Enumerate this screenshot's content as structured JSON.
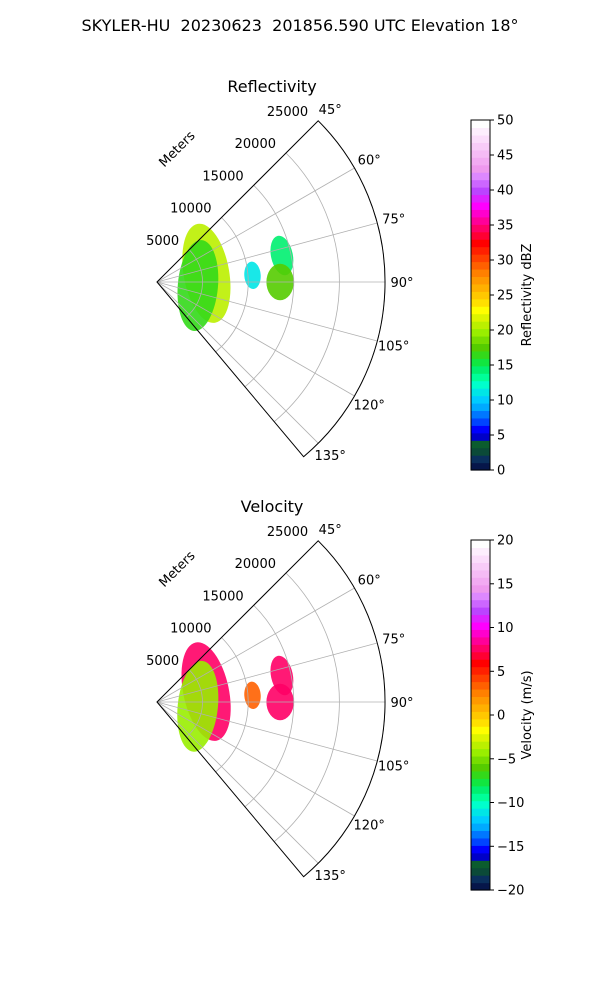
{
  "figure": {
    "title": "SKYLER-HU  20230623  201856.590 UTC Elevation 18°"
  },
  "chart_data": [
    {
      "type": "heatmap",
      "title": "Reflectivity",
      "radial_label": "Meters",
      "radial_ticks": [
        5000,
        10000,
        15000,
        20000,
        25000
      ],
      "radial_range": [
        0,
        25000
      ],
      "angle_ticks": [
        "45°",
        "60°",
        "75°",
        "90°",
        "105°",
        "120°",
        "135°"
      ],
      "angle_range_deg": [
        45,
        140
      ],
      "grid": true,
      "colorbar": {
        "label": "Reflectivity dBZ",
        "range": [
          0,
          50
        ],
        "ticks": [
          "0",
          "5",
          "10",
          "15",
          "20",
          "25",
          "30",
          "35",
          "40",
          "45",
          "50"
        ],
        "colors": [
          "#06164a",
          "#0a2f5c",
          "#0b4a38",
          "#0b5c2e",
          "#0000c8",
          "#0000ff",
          "#0044ff",
          "#0077ff",
          "#00aaff",
          "#00ccff",
          "#00e6e6",
          "#00ffcc",
          "#00ff99",
          "#00f070",
          "#11e640",
          "#33d91a",
          "#55cc00",
          "#77dd00",
          "#99ee00",
          "#bbf000",
          "#ddf500",
          "#ffff00",
          "#ffe000",
          "#ffc800",
          "#ffb000",
          "#ff9900",
          "#ff8000",
          "#ff6000",
          "#ff4000",
          "#ff2000",
          "#ff0000",
          "#ff0033",
          "#ff0066",
          "#ff0099",
          "#ff00cc",
          "#ff00ff",
          "#dd22ff",
          "#bb44ff",
          "#cc66ff",
          "#dd88ff",
          "#ee99ee",
          "#f2aaf2",
          "#f5bbf5",
          "#f8ccf8",
          "#fbddfb",
          "#fdeefd",
          "#ffffff"
        ]
      },
      "echoes": [
        {
          "az": 78,
          "r": 14000,
          "w": 1200,
          "h": 2200,
          "value": 14
        },
        {
          "az": 86,
          "r": 10500,
          "w": 900,
          "h": 1500,
          "value": 11
        },
        {
          "az": 90,
          "r": 13500,
          "w": 1500,
          "h": 2000,
          "value": 18
        },
        {
          "az": 80,
          "r": 5500,
          "w": 2500,
          "h": 5500,
          "value": 21
        },
        {
          "az": 95,
          "r": 4500,
          "w": 2200,
          "h": 5000,
          "value": 17
        }
      ]
    },
    {
      "type": "heatmap",
      "title": "Velocity",
      "radial_label": "Meters",
      "radial_ticks": [
        5000,
        10000,
        15000,
        20000,
        25000
      ],
      "radial_range": [
        0,
        25000
      ],
      "angle_ticks": [
        "45°",
        "60°",
        "75°",
        "90°",
        "105°",
        "120°",
        "135°"
      ],
      "angle_range_deg": [
        45,
        140
      ],
      "grid": true,
      "colorbar": {
        "label": "Velocity (m/s)",
        "range": [
          -20,
          20
        ],
        "ticks": [
          "−20",
          "−15",
          "−10",
          "−5",
          "0",
          "5",
          "10",
          "15",
          "20"
        ],
        "colors": [
          "#06164a",
          "#0a2f5c",
          "#0b4a38",
          "#0b5c2e",
          "#0000c8",
          "#0000ff",
          "#0044ff",
          "#0077ff",
          "#00aaff",
          "#00ccff",
          "#00e6e6",
          "#00ffcc",
          "#00ff99",
          "#00f070",
          "#11e640",
          "#33d91a",
          "#55cc00",
          "#77dd00",
          "#99ee00",
          "#bbf000",
          "#ddf500",
          "#ffff00",
          "#ffe000",
          "#ffc800",
          "#ffb000",
          "#ff9900",
          "#ff8000",
          "#ff6000",
          "#ff4000",
          "#ff2000",
          "#ff0000",
          "#ff0033",
          "#ff0066",
          "#ff0099",
          "#ff00cc",
          "#ff00ff",
          "#dd22ff",
          "#bb44ff",
          "#cc66ff",
          "#dd88ff",
          "#ee99ee",
          "#f2aaf2",
          "#f5bbf5",
          "#f8ccf8",
          "#fbddfb",
          "#fdeefd",
          "#ffffff"
        ]
      },
      "echoes": [
        {
          "az": 78,
          "r": 14000,
          "w": 1200,
          "h": 2200,
          "value": 8
        },
        {
          "az": 86,
          "r": 10500,
          "w": 900,
          "h": 1500,
          "value": 3
        },
        {
          "az": 90,
          "r": 13500,
          "w": 1500,
          "h": 2000,
          "value": 8
        },
        {
          "az": 78,
          "r": 5500,
          "w": 2500,
          "h": 5500,
          "value": 8
        },
        {
          "az": 96,
          "r": 4500,
          "w": 2200,
          "h": 5000,
          "value": -4
        }
      ]
    }
  ]
}
